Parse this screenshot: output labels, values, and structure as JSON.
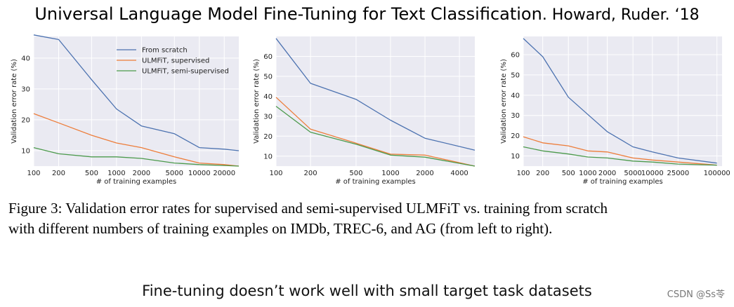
{
  "title": {
    "main": "Universal Language Model Fine-Tuning for Text Classification",
    "authors": ". Howard, Ruder. ‘18"
  },
  "caption": {
    "line1": "Figure 3:  Validation error rates for supervised and semi-supervised ULMFiT vs.  training from scratch",
    "line2": "with different numbers of training examples on IMDb, TREC-6, and AG (from left to right)."
  },
  "footer": "Fine-tuning doesn’t work well with small target task datasets",
  "watermark": "CSDN @Ss苓",
  "colors": {
    "scratch": "#4c72b0",
    "supervised": "#ed7d3a",
    "semi": "#4c9a4c",
    "plot_bg": "#eaeaf2",
    "grid": "#ffffff"
  },
  "chart_data": [
    {
      "type": "line",
      "dataset": "IMDb",
      "xscale": "log",
      "xlabel": "# of training examples",
      "ylabel": "Validation error rate (%)",
      "xlim": [
        100,
        30000
      ],
      "ylim": [
        5,
        47
      ],
      "xticks": [
        100,
        200,
        500,
        1000,
        2000,
        5000,
        10000,
        20000
      ],
      "xticklabels": [
        "100",
        "200",
        "500",
        "1000",
        "2000",
        "5000",
        "10000",
        "20000"
      ],
      "yticks": [
        10,
        20,
        30,
        40
      ],
      "yticklabels": [
        "10",
        "20",
        "30",
        "40"
      ],
      "grid": true,
      "legend": "top-center",
      "x": [
        100,
        200,
        500,
        1000,
        2000,
        5000,
        10000,
        20000,
        30000
      ],
      "series": [
        {
          "name": "From scratch",
          "values": [
            47.5,
            46,
            33,
            23.5,
            18,
            15.5,
            11,
            10.5,
            10
          ]
        },
        {
          "name": "ULMFiT, supervised",
          "values": [
            22,
            19,
            15,
            12.5,
            11,
            8,
            6,
            5.5,
            5
          ]
        },
        {
          "name": "ULMFiT, semi-supervised",
          "values": [
            11,
            9,
            8,
            8,
            7.5,
            6,
            5.5,
            5.2,
            5
          ]
        }
      ]
    },
    {
      "type": "line",
      "dataset": "TREC-6",
      "xscale": "log",
      "xlabel": "# of training examples",
      "ylabel": "Validation error rate (%)",
      "xlim": [
        100,
        5452
      ],
      "ylim": [
        5,
        70
      ],
      "xticks": [
        100,
        200,
        500,
        1000,
        2000,
        4000
      ],
      "xticklabels": [
        "100",
        "200",
        "500",
        "1000",
        "2000",
        "4000"
      ],
      "yticks": [
        10,
        20,
        30,
        40,
        50,
        60
      ],
      "yticklabels": [
        "10",
        "20",
        "30",
        "40",
        "50",
        "60"
      ],
      "grid": true,
      "legend": "none",
      "x": [
        100,
        200,
        500,
        1000,
        2000,
        5452
      ],
      "series": [
        {
          "name": "From scratch",
          "values": [
            69,
            46.5,
            38.5,
            28,
            19,
            13
          ]
        },
        {
          "name": "ULMFiT, supervised",
          "values": [
            39.5,
            23.5,
            16.5,
            11,
            10.5,
            5
          ]
        },
        {
          "name": "ULMFiT, semi-supervised",
          "values": [
            35,
            22,
            16,
            10.5,
            9.5,
            5
          ]
        }
      ]
    },
    {
      "type": "line",
      "dataset": "AG",
      "xscale": "log",
      "xlabel": "# of training examples",
      "ylabel": "Validation error rate (%)",
      "xlim": [
        100,
        120000
      ],
      "ylim": [
        5,
        69
      ],
      "xticks": [
        100,
        200,
        500,
        1000,
        2000,
        5000,
        10000,
        25000,
        100000
      ],
      "xticklabels": [
        "100",
        "200",
        "500",
        "1000",
        "2000",
        "5000",
        "10000",
        "25000",
        "100000"
      ],
      "yticks": [
        10,
        20,
        30,
        40,
        50,
        60
      ],
      "yticklabels": [
        "10",
        "20",
        "30",
        "40",
        "50",
        "60"
      ],
      "grid": true,
      "legend": "none",
      "x": [
        100,
        200,
        500,
        1000,
        2000,
        5000,
        10000,
        25000,
        100000
      ],
      "series": [
        {
          "name": "From scratch",
          "values": [
            68,
            59,
            39,
            30.5,
            22,
            14.5,
            12,
            9,
            6.5
          ]
        },
        {
          "name": "ULMFiT, supervised",
          "values": [
            19.5,
            16.5,
            15,
            12.5,
            12,
            9,
            8,
            7,
            5.5
          ]
        },
        {
          "name": "ULMFiT, semi-supervised",
          "values": [
            14.5,
            12.5,
            11,
            9.5,
            9,
            7.5,
            7,
            6,
            5.5
          ]
        }
      ]
    }
  ]
}
